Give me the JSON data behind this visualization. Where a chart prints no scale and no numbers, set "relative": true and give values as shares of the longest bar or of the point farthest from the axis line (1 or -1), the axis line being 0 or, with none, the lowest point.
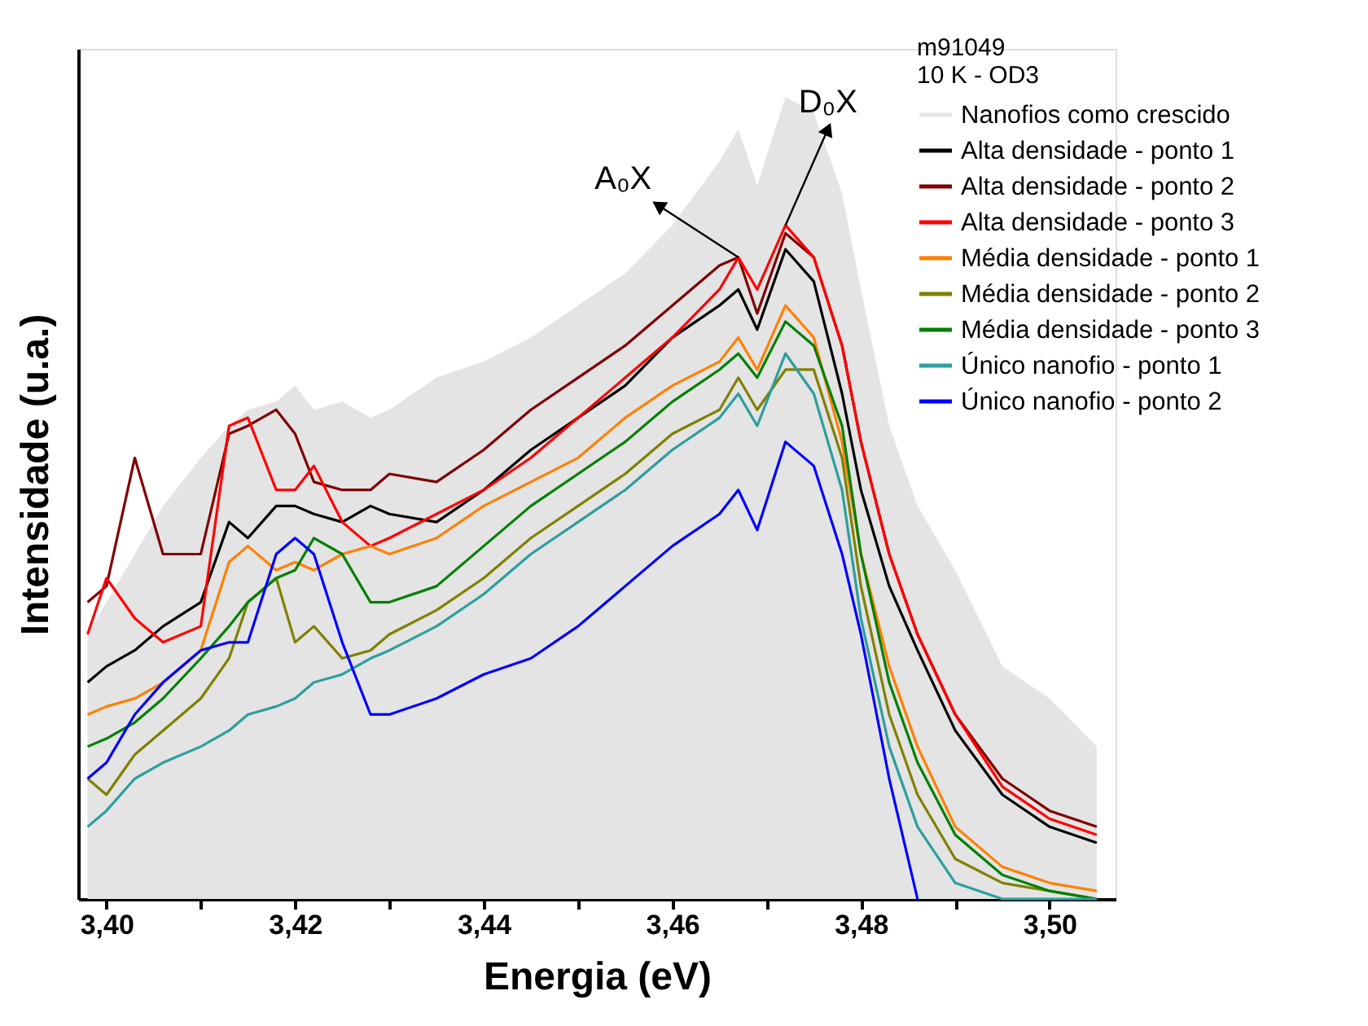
{
  "chart_data": {
    "type": "line",
    "xlabel": "Energia (eV)",
    "ylabel": "Intensidade (u.a.)",
    "legend_title": "m91049\n10 K - OD3",
    "legend": "top right",
    "relative": true,
    "xlim": [
      3.397,
      3.507
    ],
    "xticks": [
      {
        "value": 3.4,
        "label": "3,40"
      },
      {
        "value": 3.41,
        "label": null
      },
      {
        "value": 3.42,
        "label": "3,42"
      },
      {
        "value": 3.43,
        "label": null
      },
      {
        "value": 3.44,
        "label": "3,44"
      },
      {
        "value": 3.45,
        "label": null
      },
      {
        "value": 3.46,
        "label": "3,46"
      },
      {
        "value": 3.47,
        "label": null
      },
      {
        "value": 3.48,
        "label": "3,48"
      },
      {
        "value": 3.49,
        "label": null
      },
      {
        "value": 3.5,
        "label": "3,50"
      }
    ],
    "x": [
      3.398,
      3.4,
      3.403,
      3.406,
      3.41,
      3.413,
      3.415,
      3.418,
      3.42,
      3.422,
      3.425,
      3.428,
      3.43,
      3.435,
      3.44,
      3.445,
      3.45,
      3.455,
      3.46,
      3.465,
      3.467,
      3.469,
      3.472,
      3.475,
      3.478,
      3.48,
      3.483,
      3.486,
      3.49,
      3.495,
      3.5,
      3.505
    ],
    "series": [
      {
        "name": "Nanofios como crescido",
        "type": "area",
        "color": "#e4e4e4",
        "values": [
          0.33,
          0.37,
          0.43,
          0.49,
          0.55,
          0.59,
          0.61,
          0.62,
          0.64,
          0.61,
          0.62,
          0.6,
          0.61,
          0.65,
          0.67,
          0.7,
          0.74,
          0.78,
          0.84,
          0.92,
          0.96,
          0.89,
          1.0,
          0.98,
          0.88,
          0.76,
          0.59,
          0.49,
          0.41,
          0.29,
          0.25,
          0.19
        ]
      },
      {
        "name": "Alta densidade - ponto 1",
        "color": "#000000",
        "values": [
          0.27,
          0.29,
          0.31,
          0.34,
          0.37,
          0.47,
          0.45,
          0.49,
          0.49,
          0.48,
          0.47,
          0.49,
          0.48,
          0.47,
          0.51,
          0.56,
          0.6,
          0.64,
          0.7,
          0.74,
          0.76,
          0.71,
          0.81,
          0.77,
          0.63,
          0.51,
          0.39,
          0.31,
          0.21,
          0.13,
          0.09,
          0.07
        ]
      },
      {
        "name": "Alta densidade - ponto 2",
        "color": "#800000",
        "values": [
          0.37,
          0.39,
          0.55,
          0.43,
          0.43,
          0.58,
          0.59,
          0.61,
          0.58,
          0.52,
          0.51,
          0.51,
          0.53,
          0.52,
          0.56,
          0.61,
          0.65,
          0.69,
          0.74,
          0.79,
          0.8,
          0.73,
          0.83,
          0.8,
          0.69,
          0.57,
          0.43,
          0.33,
          0.23,
          0.15,
          0.11,
          0.09
        ]
      },
      {
        "name": "Alta densidade - ponto 3",
        "color": "#ff0000",
        "values": [
          0.33,
          0.4,
          0.35,
          0.32,
          0.34,
          0.59,
          0.6,
          0.51,
          0.51,
          0.54,
          0.47,
          0.44,
          0.45,
          0.48,
          0.51,
          0.55,
          0.6,
          0.65,
          0.7,
          0.76,
          0.8,
          0.76,
          0.84,
          0.8,
          0.69,
          0.57,
          0.43,
          0.33,
          0.23,
          0.14,
          0.1,
          0.08
        ]
      },
      {
        "name": "Média densidade - ponto 1",
        "color": "#ff8000",
        "values": [
          0.23,
          0.24,
          0.25,
          0.27,
          0.31,
          0.42,
          0.44,
          0.41,
          0.42,
          0.41,
          0.43,
          0.44,
          0.43,
          0.45,
          0.49,
          0.52,
          0.55,
          0.6,
          0.64,
          0.67,
          0.7,
          0.66,
          0.74,
          0.7,
          0.57,
          0.43,
          0.29,
          0.19,
          0.09,
          0.04,
          0.02,
          0.01
        ]
      },
      {
        "name": "Média densidade - ponto 2",
        "color": "#808000",
        "values": [
          0.15,
          0.13,
          0.18,
          0.21,
          0.25,
          0.3,
          0.37,
          0.4,
          0.32,
          0.34,
          0.3,
          0.31,
          0.33,
          0.36,
          0.4,
          0.45,
          0.49,
          0.53,
          0.58,
          0.61,
          0.65,
          0.61,
          0.66,
          0.66,
          0.55,
          0.39,
          0.23,
          0.13,
          0.05,
          0.02,
          0.01,
          0.0
        ]
      },
      {
        "name": "Média densidade - ponto 3",
        "color": "#008000",
        "values": [
          0.19,
          0.2,
          0.22,
          0.25,
          0.3,
          0.34,
          0.37,
          0.4,
          0.41,
          0.45,
          0.43,
          0.37,
          0.37,
          0.39,
          0.44,
          0.49,
          0.53,
          0.57,
          0.62,
          0.66,
          0.68,
          0.65,
          0.72,
          0.69,
          0.59,
          0.43,
          0.27,
          0.17,
          0.08,
          0.03,
          0.01,
          0.0
        ]
      },
      {
        "name": "Único nanofio - ponto 1",
        "color": "#2e9e9e",
        "values": [
          0.09,
          0.11,
          0.15,
          0.17,
          0.19,
          0.21,
          0.23,
          0.24,
          0.25,
          0.27,
          0.28,
          0.3,
          0.31,
          0.34,
          0.38,
          0.43,
          0.47,
          0.51,
          0.56,
          0.6,
          0.63,
          0.59,
          0.68,
          0.63,
          0.51,
          0.35,
          0.19,
          0.09,
          0.02,
          0.0,
          0.0,
          0.0
        ]
      },
      {
        "name": "Único nanofio - ponto 2",
        "color": "#0000ff",
        "x": [
          3.398,
          3.4,
          3.403,
          3.406,
          3.41,
          3.413,
          3.415,
          3.418,
          3.42,
          3.422,
          3.425,
          3.428,
          3.43,
          3.435,
          3.44,
          3.445,
          3.45,
          3.455,
          3.46,
          3.465,
          3.467,
          3.469,
          3.472,
          3.475,
          3.478,
          3.48,
          3.483,
          3.486
        ],
        "values": [
          0.15,
          0.17,
          0.23,
          0.27,
          0.31,
          0.32,
          0.32,
          0.43,
          0.45,
          0.43,
          0.32,
          0.23,
          0.23,
          0.25,
          0.28,
          0.3,
          0.34,
          0.39,
          0.44,
          0.48,
          0.51,
          0.46,
          0.57,
          0.54,
          0.43,
          0.33,
          0.15,
          0.0
        ]
      }
    ],
    "annotations": [
      {
        "text": "A₀X",
        "x": 3.467,
        "y": 0.8
      },
      {
        "text": "D₀X",
        "x": 3.472,
        "y": 0.84
      }
    ]
  }
}
